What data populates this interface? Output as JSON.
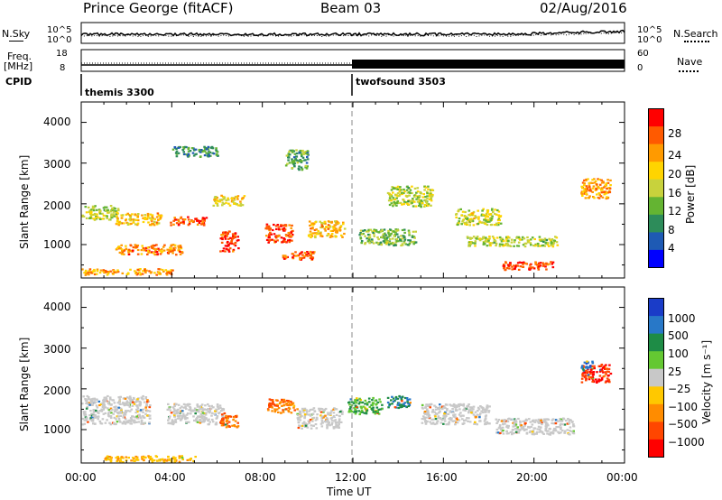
{
  "header": {
    "station": "Prince George (fitACF)",
    "beam": "Beam 03",
    "date": "02/Aug/2016"
  },
  "top_strips": {
    "nsky_label": "N.Sky",
    "nsky_ticks": [
      "10^5",
      "10^0"
    ],
    "nsearch_label": "N.Search",
    "nsearch_ticks": [
      "10^5",
      "10^0"
    ],
    "freq_label_1": "Freq.",
    "freq_label_2": "[MHz]",
    "freq_ticks": [
      "18",
      "8"
    ],
    "nave_label": "Nave",
    "nave_ticks": [
      "60",
      "0"
    ],
    "cpid_label": "CPID",
    "cpid_segments": [
      {
        "name": "themis 3300",
        "start_hour": 0,
        "end_hour": 12
      },
      {
        "name": "twofsound 3503",
        "start_hour": 12,
        "end_hour": 24
      }
    ]
  },
  "power_panel": {
    "ylabel": "Slant Range [km]",
    "yticks": [
      "4000",
      "3000",
      "2000",
      "1000"
    ],
    "colorbar_label": "Power [dB]",
    "colorbar_ticks": [
      "28",
      "24",
      "20",
      "16",
      "12",
      "8",
      "4"
    ],
    "colorbar_colors": [
      "#ff0000",
      "#ff5a00",
      "#ff9a00",
      "#ffd400",
      "#c8d23c",
      "#64b432",
      "#2d8c5a",
      "#1e5ab4",
      "#0000ff"
    ]
  },
  "velocity_panel": {
    "ylabel": "Slant Range [km]",
    "yticks": [
      "4000",
      "3000",
      "2000",
      "1000"
    ],
    "colorbar_label": "Velocity [m s⁻¹]",
    "colorbar_ticks": [
      "1000",
      "500",
      "100",
      "25",
      "−25",
      "−100",
      "−500",
      "−1000"
    ],
    "colorbar_colors": [
      "#1a3cc8",
      "#2878c8",
      "#1e8c46",
      "#64c832",
      "#c8c8c8",
      "#ffc800",
      "#ff8c00",
      "#ff4600",
      "#ff0000"
    ]
  },
  "xaxis": {
    "ticks": [
      "00:00",
      "04:00",
      "08:00",
      "12:00",
      "16:00",
      "20:00",
      "00:00"
    ],
    "label": "Time UT"
  },
  "chart_data": {
    "type": "heatmap",
    "x_unit": "hour UT",
    "x_range": [
      0,
      24
    ],
    "y_range_km": [
      180,
      4500
    ],
    "power_blobs": [
      {
        "t": 0.8,
        "r": 1800,
        "w": 1.6,
        "h": 350,
        "v": 14
      },
      {
        "t": 2.5,
        "r": 1650,
        "w": 2.0,
        "h": 300,
        "v": 20
      },
      {
        "t": 4.7,
        "r": 1600,
        "w": 1.6,
        "h": 200,
        "v": 26
      },
      {
        "t": 6.5,
        "r": 2100,
        "w": 1.4,
        "h": 250,
        "v": 18
      },
      {
        "t": 3.0,
        "r": 900,
        "w": 3.0,
        "h": 250,
        "v": 24
      },
      {
        "t": 6.5,
        "r": 1100,
        "w": 0.8,
        "h": 500,
        "v": 28
      },
      {
        "t": 8.7,
        "r": 1300,
        "w": 1.2,
        "h": 450,
        "v": 28
      },
      {
        "t": 9.6,
        "r": 750,
        "w": 1.5,
        "h": 200,
        "v": 26
      },
      {
        "t": 10.8,
        "r": 1400,
        "w": 1.6,
        "h": 400,
        "v": 20
      },
      {
        "t": 5.0,
        "r": 3300,
        "w": 2.0,
        "h": 250,
        "v": 8
      },
      {
        "t": 9.5,
        "r": 3100,
        "w": 1.0,
        "h": 500,
        "v": 10
      },
      {
        "t": 13.5,
        "r": 1200,
        "w": 2.5,
        "h": 400,
        "v": 12
      },
      {
        "t": 14.5,
        "r": 2200,
        "w": 2.0,
        "h": 500,
        "v": 14
      },
      {
        "t": 17.5,
        "r": 1700,
        "w": 2.0,
        "h": 400,
        "v": 16
      },
      {
        "t": 19.7,
        "r": 500,
        "w": 2.2,
        "h": 200,
        "v": 28
      },
      {
        "t": 19.0,
        "r": 1100,
        "w": 4.0,
        "h": 250,
        "v": 14
      },
      {
        "t": 22.7,
        "r": 2400,
        "w": 1.3,
        "h": 500,
        "v": 22
      },
      {
        "t": 2.0,
        "r": 350,
        "w": 4.0,
        "h": 150,
        "v": 22
      }
    ],
    "velocity_blobs": [
      {
        "t": 1.5,
        "r": 1500,
        "w": 3.0,
        "h": 700,
        "v": 0
      },
      {
        "t": 5.0,
        "r": 1400,
        "w": 2.5,
        "h": 500,
        "v": 0
      },
      {
        "t": 6.5,
        "r": 1250,
        "w": 0.8,
        "h": 350,
        "v": -500
      },
      {
        "t": 8.8,
        "r": 1600,
        "w": 1.2,
        "h": 350,
        "v": -500
      },
      {
        "t": 10.5,
        "r": 1300,
        "w": 2.0,
        "h": 500,
        "v": 0
      },
      {
        "t": 12.5,
        "r": 1600,
        "w": 1.5,
        "h": 400,
        "v": 100
      },
      {
        "t": 14.0,
        "r": 1700,
        "w": 1.0,
        "h": 300,
        "v": 500
      },
      {
        "t": 16.5,
        "r": 1400,
        "w": 3.0,
        "h": 500,
        "v": 0
      },
      {
        "t": 20.0,
        "r": 1100,
        "w": 3.5,
        "h": 400,
        "v": 0
      },
      {
        "t": 22.7,
        "r": 2400,
        "w": 1.3,
        "h": 450,
        "v": -1000
      },
      {
        "t": 22.3,
        "r": 2600,
        "w": 0.5,
        "h": 200,
        "v": 1000
      },
      {
        "t": 3.0,
        "r": 300,
        "w": 4.0,
        "h": 150,
        "v": -100
      }
    ]
  }
}
